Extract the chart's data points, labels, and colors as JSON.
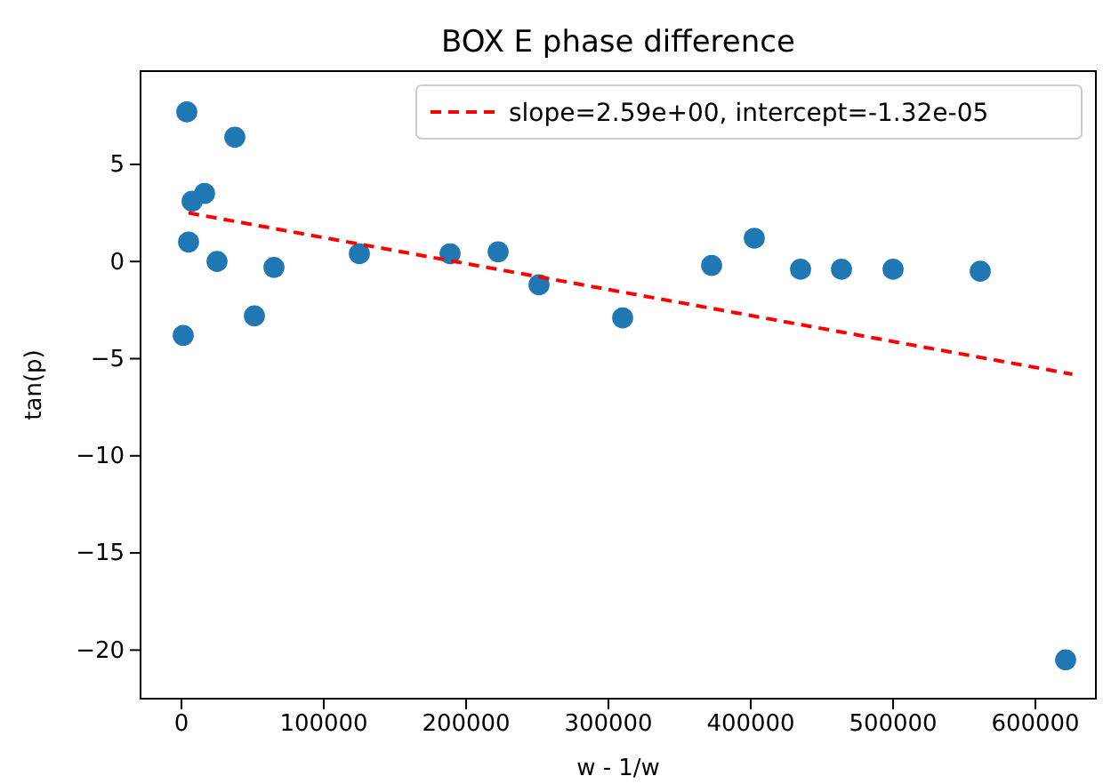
{
  "chart_data": {
    "type": "scatter",
    "title": "BOX E phase difference",
    "xlabel": "w - 1/w",
    "ylabel": "tan(p)",
    "xlim": [
      -28750,
      642500
    ],
    "ylim": [
      -22.5,
      9.8
    ],
    "xticks": [
      0,
      100000,
      200000,
      300000,
      400000,
      500000,
      600000
    ],
    "yticks": [
      {
        "value": -20,
        "label": "−20"
      },
      {
        "value": -15,
        "label": "−15"
      },
      {
        "value": -10,
        "label": "−10"
      },
      {
        "value": -5,
        "label": "−5"
      },
      0,
      5
    ],
    "marker": "circle",
    "grid": false,
    "legend": "top right",
    "series": [
      {
        "color": "#1f77b4",
        "x": [
          1250,
          3750,
          5000,
          7500,
          16250,
          25000,
          37500,
          51250,
          65000,
          125000,
          188750,
          222500,
          251250,
          310000,
          372500,
          402500,
          435000,
          463750,
          500000,
          561250,
          621250
        ],
        "values": [
          -3.8,
          7.7,
          1.0,
          3.1,
          3.5,
          0.0,
          6.4,
          -2.8,
          -0.3,
          0.4,
          0.4,
          0.5,
          -1.2,
          -2.9,
          -0.2,
          1.2,
          -0.4,
          -0.4,
          -0.4,
          -0.5,
          -20.5
        ],
        "errors": [
          0.5,
          0.5,
          0.5,
          0.5,
          0.5,
          0.5,
          0.5,
          0.5,
          0.5,
          0.5,
          0.5,
          0.5,
          0.5,
          0.5,
          0.5,
          0.5,
          0.5,
          0.5,
          0.5,
          0.5,
          0.5
        ]
      },
      {
        "type": "line",
        "name": "slope=2.59e+00, intercept=-1.32e-05",
        "color": "#ff0000",
        "line_style": "dashed",
        "marker": "none",
        "x": [
          5000,
          626000
        ],
        "values": [
          2.5,
          -5.8
        ]
      }
    ]
  }
}
